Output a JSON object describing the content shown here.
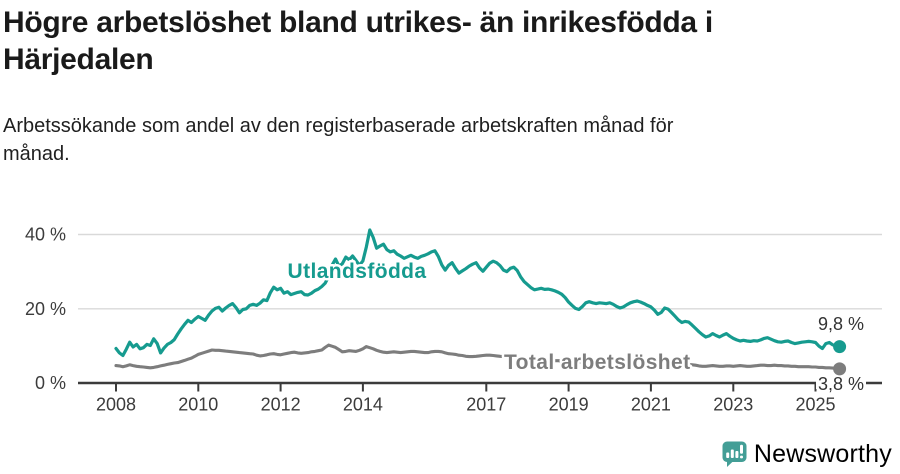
{
  "colors": {
    "foreign_line": "#169b8f",
    "total_line": "#7d7d7d",
    "grid": "#d9d9d9",
    "axis": "#3b3b3b",
    "tick_text": "#3c3c3c",
    "title_text": "#1a1a1a",
    "end_label_text": "#333333",
    "brand_teal": "#439e96",
    "background": "#ffffff"
  },
  "footer": {
    "brand_name": "Newsworthy",
    "logo_icon": "bar-chart-speech-bubble"
  },
  "chart_data": {
    "type": "line",
    "title": "Högre arbetslöshet bland utrikes- än inrikesfödda i Härjedalen",
    "title_lines": [
      "Högre arbetslöshet bland utrikes- än inrikesfödda i",
      "Härjedalen"
    ],
    "subtitle": "Arbetssökande som andel av den registerbaserade arbetskraften månad för månad.",
    "subtitle_lines": [
      "Arbetssökande som andel av den registerbaserade arbetskraften månad för",
      "månad."
    ],
    "unit": "%",
    "grid": "horizontal",
    "legend": "inline-labels",
    "xlim": [
      2007.8,
      2025.9
    ],
    "ylim": [
      0,
      44
    ],
    "x_ticks": [
      2008,
      2010,
      2012,
      2014,
      2017,
      2019,
      2021,
      2023,
      2025
    ],
    "y_ticks": [
      0,
      20,
      40
    ],
    "y_tick_labels": [
      "0 %",
      "20 %",
      "40 %"
    ],
    "frequency": "monthly",
    "series": [
      {
        "name": "Utlandsfödda",
        "color": "#169b8f",
        "start_year": 2008,
        "points_per_year": 12,
        "end_value": 9.8,
        "end_label": "9,8 %",
        "values": [
          9.3,
          8.1,
          7.4,
          9.1,
          11.0,
          9.7,
          10.4,
          9.2,
          9.5,
          10.4,
          10.1,
          11.9,
          10.6,
          8.1,
          9.4,
          10.4,
          10.9,
          11.7,
          13.2,
          14.6,
          15.8,
          16.9,
          16.3,
          17.2,
          17.9,
          17.4,
          16.9,
          18.3,
          19.4,
          20.1,
          20.4,
          19.4,
          20.2,
          20.9,
          21.4,
          20.3,
          18.9,
          19.8,
          20.0,
          20.9,
          21.2,
          20.9,
          21.5,
          22.4,
          22.2,
          24.3,
          25.8,
          25.1,
          25.5,
          24.2,
          24.6,
          23.8,
          24.1,
          24.4,
          24.6,
          23.8,
          23.7,
          24.2,
          24.9,
          25.3,
          26.0,
          26.9,
          28.7,
          31.7,
          33.4,
          31.5,
          32.1,
          33.9,
          33.2,
          34.2,
          33.0,
          31.7,
          32.9,
          36.6,
          41.2,
          39.2,
          36.3,
          36.9,
          37.4,
          35.9,
          35.3,
          35.6,
          34.7,
          34.2,
          33.6,
          34.0,
          34.4,
          33.9,
          33.6,
          34.1,
          34.4,
          34.8,
          35.3,
          35.6,
          34.1,
          31.8,
          30.4,
          31.7,
          32.4,
          30.9,
          29.6,
          30.2,
          30.8,
          31.5,
          32.0,
          32.4,
          31.0,
          30.1,
          31.2,
          32.3,
          32.8,
          32.4,
          31.6,
          30.4,
          30.0,
          30.9,
          31.2,
          30.3,
          28.6,
          27.3,
          26.5,
          25.7,
          25.1,
          25.3,
          25.5,
          25.2,
          25.3,
          25.1,
          24.8,
          24.4,
          23.9,
          23.0,
          21.8,
          20.9,
          20.1,
          19.8,
          20.6,
          21.6,
          21.9,
          21.6,
          21.4,
          21.6,
          21.5,
          21.4,
          21.6,
          21.2,
          20.6,
          20.2,
          20.5,
          21.1,
          21.6,
          21.9,
          22.1,
          21.8,
          21.4,
          20.9,
          20.5,
          19.6,
          18.5,
          19.0,
          20.2,
          19.9,
          19.0,
          18.0,
          17.0,
          16.3,
          16.6,
          16.4,
          15.6,
          14.7,
          13.8,
          13.0,
          12.4,
          12.7,
          13.3,
          12.8,
          12.4,
          12.9,
          13.3,
          12.6,
          12.0,
          11.6,
          11.3,
          11.5,
          11.3,
          11.2,
          11.4,
          11.3,
          11.6,
          12.0,
          12.2,
          11.8,
          11.4,
          11.1,
          11.0,
          11.2,
          11.3,
          10.9,
          10.6,
          10.8,
          11.0,
          11.1,
          11.2,
          11.1,
          10.9,
          9.9,
          9.3,
          10.6,
          10.9,
          10.3,
          9.9,
          9.8
        ]
      },
      {
        "name": "Total arbetslöshet",
        "color": "#7d7d7d",
        "start_year": 2008,
        "points_per_year": 12,
        "end_value": 3.8,
        "end_label": "3,8 %",
        "values": [
          4.7,
          4.6,
          4.4,
          4.6,
          4.9,
          4.7,
          4.5,
          4.4,
          4.3,
          4.2,
          4.1,
          4.2,
          4.4,
          4.6,
          4.8,
          5.0,
          5.2,
          5.4,
          5.5,
          5.8,
          6.1,
          6.4,
          6.7,
          7.2,
          7.7,
          8.0,
          8.3,
          8.6,
          8.9,
          8.8,
          8.8,
          8.7,
          8.6,
          8.5,
          8.4,
          8.3,
          8.2,
          8.1,
          8.0,
          7.9,
          7.8,
          7.5,
          7.3,
          7.4,
          7.6,
          7.8,
          7.9,
          7.7,
          7.6,
          7.8,
          8.0,
          8.2,
          8.3,
          8.1,
          8.0,
          8.1,
          8.2,
          8.4,
          8.5,
          8.7,
          8.9,
          9.6,
          10.2,
          9.9,
          9.6,
          9.0,
          8.4,
          8.5,
          8.7,
          8.6,
          8.5,
          8.8,
          9.2,
          9.8,
          9.5,
          9.2,
          8.8,
          8.5,
          8.3,
          8.2,
          8.3,
          8.4,
          8.3,
          8.2,
          8.3,
          8.4,
          8.5,
          8.5,
          8.4,
          8.3,
          8.2,
          8.2,
          8.4,
          8.5,
          8.5,
          8.4,
          8.1,
          7.9,
          7.8,
          7.7,
          7.5,
          7.4,
          7.2,
          7.1,
          7.1,
          7.2,
          7.3,
          7.4,
          7.5,
          7.5,
          7.4,
          7.3,
          7.2,
          7.1,
          7.0,
          6.9,
          6.9,
          6.8,
          6.7,
          6.6,
          6.5,
          6.4,
          6.3,
          6.3,
          6.2,
          6.2,
          6.1,
          6.1,
          6.0,
          6.0,
          5.9,
          5.9,
          5.8,
          5.8,
          5.7,
          5.7,
          5.6,
          5.6,
          5.6,
          5.6,
          5.7,
          5.7,
          5.8,
          5.9,
          6.0,
          6.1,
          6.3,
          6.4,
          6.5,
          6.6,
          6.6,
          6.5,
          6.5,
          6.4,
          6.3,
          6.1,
          6.0,
          5.9,
          5.8,
          5.7,
          5.6,
          5.5,
          5.4,
          5.3,
          5.2,
          5.2,
          5.1,
          5.0,
          4.9,
          4.8,
          4.6,
          4.5,
          4.5,
          4.6,
          4.7,
          4.6,
          4.5,
          4.5,
          4.6,
          4.6,
          4.5,
          4.6,
          4.7,
          4.6,
          4.5,
          4.5,
          4.6,
          4.7,
          4.8,
          4.8,
          4.7,
          4.7,
          4.8,
          4.7,
          4.7,
          4.6,
          4.6,
          4.5,
          4.5,
          4.4,
          4.4,
          4.4,
          4.4,
          4.3,
          4.3,
          4.2,
          4.2,
          4.1,
          4.1,
          4.0,
          3.9,
          3.8
        ]
      }
    ]
  }
}
